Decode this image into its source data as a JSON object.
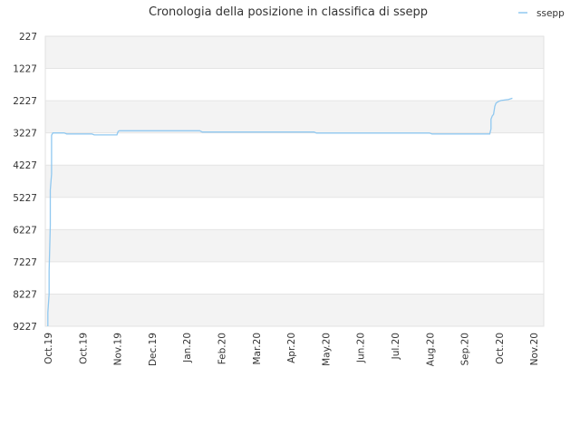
{
  "chart_data": {
    "type": "line",
    "title": "Cronologia della posizione in classifica di ssepp",
    "xlabel": "",
    "ylabel": "",
    "y_reversed": true,
    "ylim": [
      227,
      9227
    ],
    "y_ticks": [
      "227",
      "1227",
      "2227",
      "3227",
      "4227",
      "5227",
      "6227",
      "7227",
      "8227",
      "9227"
    ],
    "x_ticks": [
      "Oct.19",
      "Oct.19",
      "Nov.19",
      "Dec.19",
      "Jan.20",
      "Feb.20",
      "Mar.20",
      "Apr.20",
      "May.20",
      "Jun.20",
      "Jul.20",
      "Aug.20",
      "Sep.20",
      "Oct.20",
      "Nov.20"
    ],
    "x_range": [
      "2019-10-01",
      "2020-11-01"
    ],
    "grid": "horizontal banded",
    "legend_position": "top-right",
    "series": [
      {
        "name": "ssepp",
        "color": "#90c8f0",
        "points": [
          [
            "2019-10-03",
            9227
          ],
          [
            "2019-10-03",
            8800
          ],
          [
            "2019-10-04",
            8227
          ],
          [
            "2019-10-04",
            7500
          ],
          [
            "2019-10-05",
            6100
          ],
          [
            "2019-10-05",
            5000
          ],
          [
            "2019-10-06",
            4500
          ],
          [
            "2019-10-06",
            3300
          ],
          [
            "2019-10-07",
            3227
          ],
          [
            "2019-10-16",
            3227
          ],
          [
            "2019-10-18",
            3260
          ],
          [
            "2019-11-07",
            3260
          ],
          [
            "2019-11-09",
            3290
          ],
          [
            "2019-11-27",
            3290
          ],
          [
            "2019-11-28",
            3180
          ],
          [
            "2019-11-29",
            3160
          ],
          [
            "2020-02-01",
            3160
          ],
          [
            "2020-02-03",
            3200
          ],
          [
            "2020-05-02",
            3200
          ],
          [
            "2020-05-04",
            3230
          ],
          [
            "2020-08-02",
            3230
          ],
          [
            "2020-08-04",
            3260
          ],
          [
            "2020-09-19",
            3260
          ],
          [
            "2020-09-20",
            3100
          ],
          [
            "2020-09-20",
            2800
          ],
          [
            "2020-09-21",
            2700
          ],
          [
            "2020-09-22",
            2650
          ],
          [
            "2020-09-23",
            2400
          ],
          [
            "2020-09-24",
            2300
          ],
          [
            "2020-09-26",
            2250
          ],
          [
            "2020-09-28",
            2220
          ],
          [
            "2020-10-04",
            2190
          ],
          [
            "2020-10-07",
            2150
          ]
        ]
      }
    ]
  }
}
